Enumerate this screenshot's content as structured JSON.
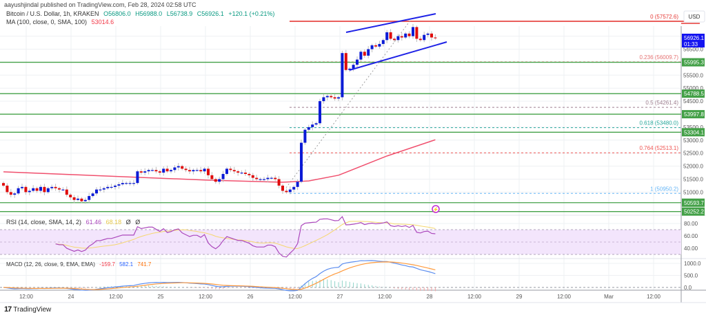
{
  "header": {
    "published": "aayushjindal published on TradingView.com, Feb 28, 2024 02:58 UTC",
    "symbol": "Bitcoin / U.S. Dollar, 1h, KRAKEN",
    "open": "O56806.0",
    "high": "H56988.0",
    "low": "L56738.9",
    "close": "C56926.1",
    "change": "+120.1 (+0.21%)",
    "ma_label": "MA (100, close, 0, SMA, 100)",
    "ma_value": "53014.6"
  },
  "price_axis": {
    "currency": "USD",
    "ticks": [
      "56500.0",
      "55500.0",
      "55000.0",
      "54500.0",
      "53500.0",
      "53000.0",
      "52500.0",
      "52000.0",
      "51500.0",
      "51000.0"
    ],
    "last_price": "56926.1",
    "countdown": "01:33"
  },
  "levels": [
    {
      "price": 55995.3,
      "label": "55995.3"
    },
    {
      "price": 54788.5,
      "label": "54788.5"
    },
    {
      "price": 53997.8,
      "label": "53997.8"
    },
    {
      "price": 53304.1,
      "label": "53304.1"
    },
    {
      "price": 50593.7,
      "label": "50593.7"
    },
    {
      "price": 50252.2,
      "label": "50252.2"
    }
  ],
  "fib": [
    {
      "price": 57572.6,
      "label": "0 (57572.6)",
      "color": "#e53935"
    },
    {
      "price": 56009.7,
      "label": "0.236 (56009.7)",
      "color": "#e57373"
    },
    {
      "price": 54261.4,
      "label": "0.5 (54261.4)",
      "color": "#9e7f8f"
    },
    {
      "price": 53480.0,
      "label": "0.618 (53480.0)",
      "color": "#26a69a"
    },
    {
      "price": 52513.1,
      "label": "0.764 (52513.1)",
      "color": "#ef5350"
    },
    {
      "price": 50950.2,
      "label": "1 (50950.2)",
      "color": "#64b5f6"
    }
  ],
  "chart_data": {
    "type": "candlestick",
    "timeframe": "1h",
    "closes": [
      51250,
      51000,
      50900,
      50950,
      51150,
      51200,
      51000,
      51050,
      51150,
      51050,
      51200,
      51000,
      51150,
      51200,
      51150,
      51100,
      51100,
      50900,
      50800,
      50700,
      50750,
      50650,
      50700,
      50850,
      50950,
      51100,
      51100,
      51150,
      51200,
      51200,
      51250,
      51300,
      51350,
      51350,
      51350,
      51350,
      51800,
      51750,
      51800,
      51850,
      51850,
      51800,
      51750,
      51900,
      51800,
      51850,
      51950,
      52000,
      51900,
      51850,
      51800,
      51850,
      51850,
      51800,
      51900,
      51650,
      51500,
      51400,
      51500,
      51700,
      51900,
      51850,
      51800,
      51750,
      51750,
      51700,
      51650,
      51550,
      51500,
      51500,
      51500,
      51550,
      51550,
      51500,
      51250,
      51050,
      51000,
      51100,
      51200,
      51400,
      52900,
      53400,
      53500,
      53600,
      53650,
      54500,
      54650,
      54700,
      54650,
      54600,
      54650,
      56350,
      55700,
      55750,
      55900,
      56100,
      56400,
      56250,
      56500,
      56650,
      56600,
      56700,
      56850,
      57150,
      56900,
      56850,
      57000,
      56950,
      57100,
      57000,
      57350,
      56900,
      56850,
      57050,
      57100,
      56950,
      56926.1
    ],
    "ma100": [
      [
        0,
        51780
      ],
      [
        55,
        51460
      ],
      [
        75,
        51380
      ],
      [
        82,
        51430
      ],
      [
        90,
        51650
      ],
      [
        103,
        52390
      ],
      [
        116,
        53014.6
      ]
    ],
    "up_color": "#0b1bd6",
    "down_color": "#e00b0b",
    "time_labels": [
      "12:00",
      "24",
      "12:00",
      "25",
      "12:00",
      "26",
      "12:00",
      "27",
      "12:00",
      "28",
      "12:00",
      "29",
      "12:00",
      "Mar",
      "12:00"
    ]
  },
  "rsi": {
    "label": "RSI (14, close, SMA, 14, 2)",
    "value": "61.46",
    "ma_value": "68.18",
    "extra1": "Ø",
    "extra2": "Ø",
    "ticks": [
      "80.00",
      "60.00",
      "40.00"
    ]
  },
  "macd": {
    "label": "MACD (12, 26, close, 9, EMA, EMA)",
    "hist": "-159.7",
    "macd": "582.1",
    "signal": "741.7",
    "ticks": [
      "1000.0",
      "500.0",
      "0.0"
    ]
  },
  "footer": {
    "brand": "TradingView"
  }
}
